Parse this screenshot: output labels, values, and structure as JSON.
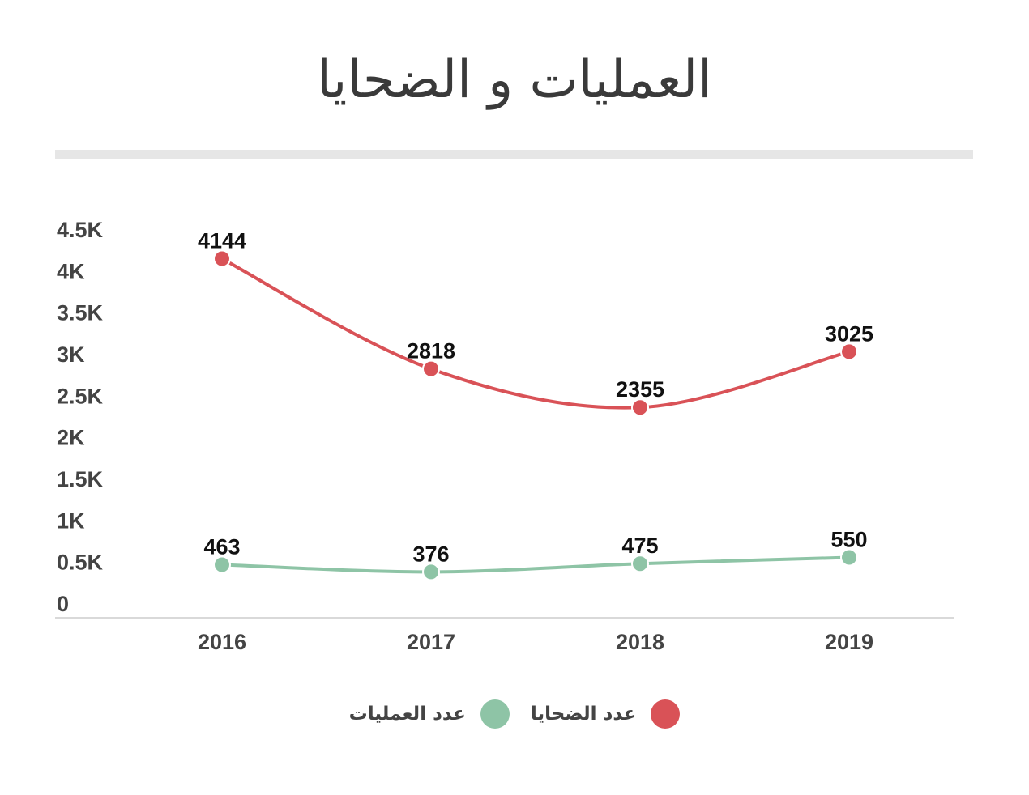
{
  "chart_data": {
    "type": "line",
    "title": "العمليات و الضحايا",
    "categories": [
      "2016",
      "2017",
      "2018",
      "2019"
    ],
    "y_ticks": [
      "0",
      "0.5K",
      "1K",
      "1.5K",
      "2K",
      "2.5K",
      "3K",
      "3.5K",
      "4K",
      "4.5K"
    ],
    "ylim": [
      0,
      4500
    ],
    "grid": false,
    "legend_position": "bottom",
    "series": [
      {
        "name": "عدد الضحايا",
        "color": "#d95257",
        "values": [
          4144,
          2818,
          2355,
          3025
        ]
      },
      {
        "name": "عدد العمليات",
        "color": "#8ec4a6",
        "values": [
          463,
          376,
          475,
          550
        ]
      }
    ]
  }
}
